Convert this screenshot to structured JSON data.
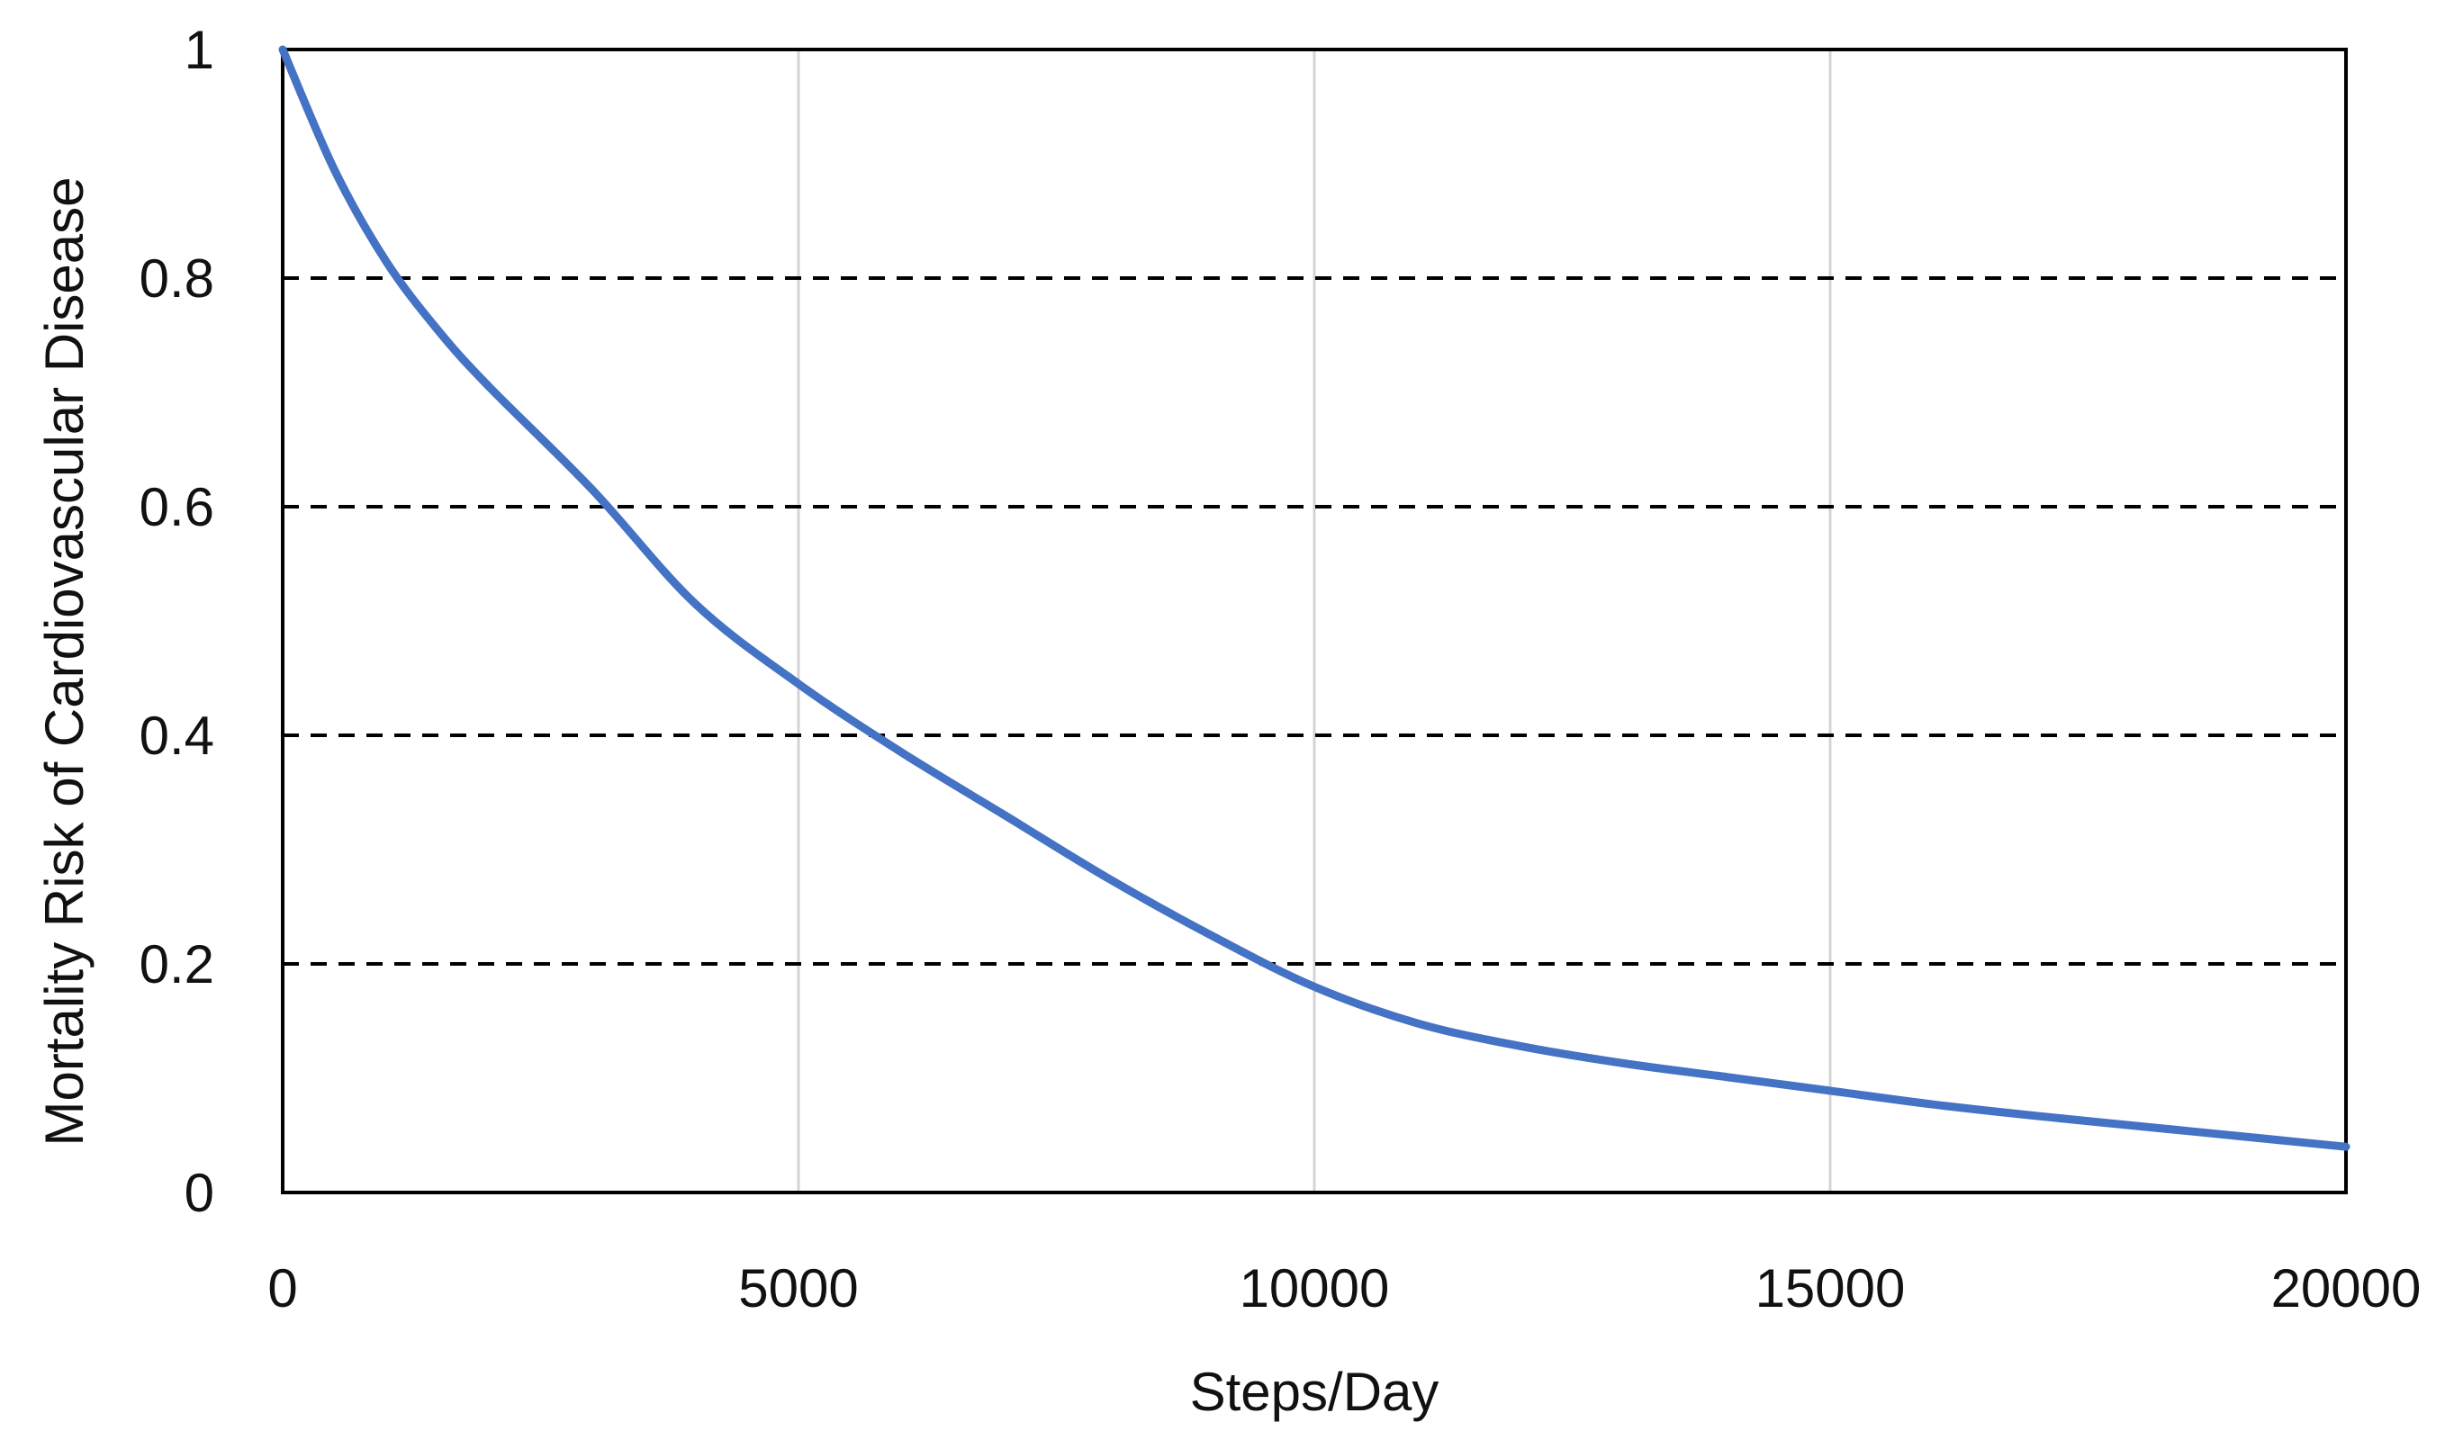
{
  "chart_data": {
    "type": "line",
    "title": "",
    "xlabel": "Steps/Day",
    "ylabel": "Mortality Risk of Cardiovascular Disease",
    "xlim": [
      0,
      20000
    ],
    "ylim": [
      0,
      1
    ],
    "x_ticks": [
      0,
      5000,
      10000,
      15000,
      20000
    ],
    "x_tick_labels": [
      "0",
      "5000",
      "10000",
      "15000",
      "20000"
    ],
    "y_ticks": [
      0,
      0.2,
      0.4,
      0.6,
      0.8,
      1
    ],
    "y_tick_labels": [
      "0",
      "0.2",
      "0.4",
      "0.6",
      "0.8",
      "1"
    ],
    "grid": {
      "vertical": "solid light gray at x ticks",
      "horizontal": "dashed black at y ticks"
    },
    "legend": "none",
    "series": [
      {
        "color": "#4472C4",
        "x": [
          0,
          500,
          1000,
          1500,
          2000,
          3000,
          4000,
          5000,
          6000,
          7000,
          8000,
          9000,
          10000,
          11000,
          12000,
          13000,
          14000,
          15000,
          16000,
          17000,
          18000,
          19000,
          20000
        ],
        "y": [
          1.0,
          0.895,
          0.815,
          0.755,
          0.705,
          0.615,
          0.515,
          0.445,
          0.385,
          0.33,
          0.275,
          0.225,
          0.18,
          0.148,
          0.128,
          0.113,
          0.101,
          0.089,
          0.077,
          0.067,
          0.058,
          0.049,
          0.04
        ]
      }
    ]
  }
}
